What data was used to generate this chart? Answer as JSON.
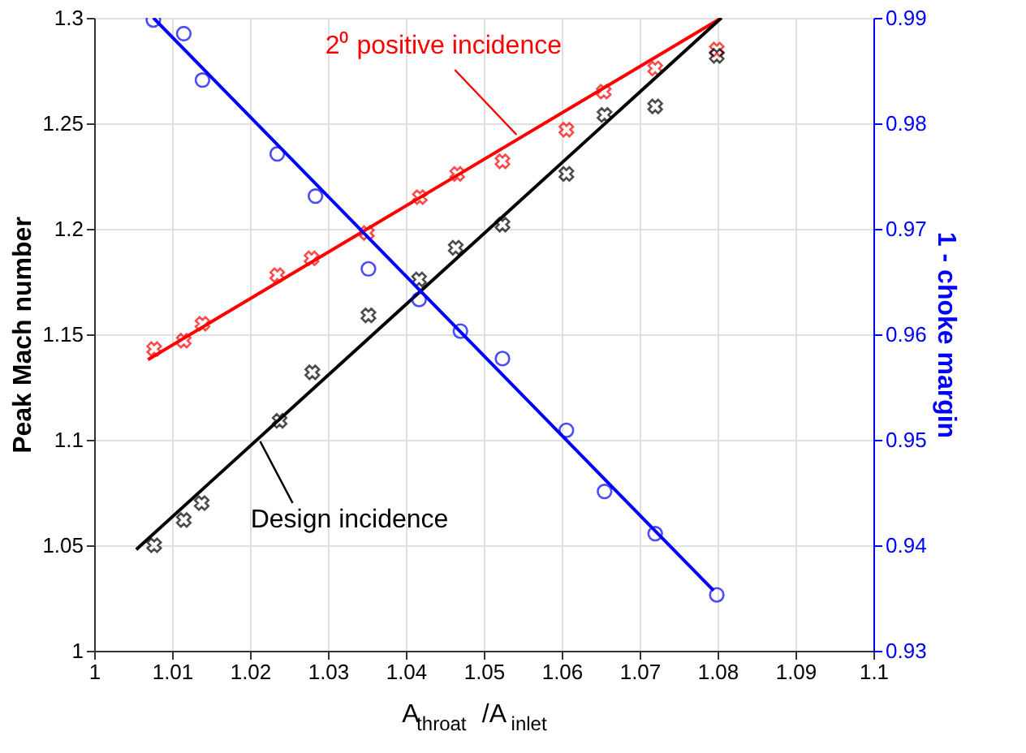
{
  "chart_data": {
    "type": "scatter",
    "xlabel": "A$_{throat}$/A$_{inlet}$",
    "ylabel": "Peak Mach number",
    "y2label": "1 - choke margin",
    "xlim": [
      1,
      1.1
    ],
    "xticks": [
      1,
      1.01,
      1.02,
      1.03,
      1.04,
      1.05,
      1.06,
      1.07,
      1.08,
      1.09,
      1.1
    ],
    "ylim": [
      1,
      1.3
    ],
    "yticks": [
      1,
      1.05,
      1.1,
      1.15,
      1.2,
      1.25,
      1.3
    ],
    "y2lim": [
      0.93,
      0.99
    ],
    "y2ticks": [
      0.93,
      0.94,
      0.95,
      0.96,
      0.97,
      0.98,
      0.99
    ],
    "grid": true,
    "series": [
      {
        "marker": "cross",
        "color": "#ff0000",
        "x": [
          1.0077,
          1.0115,
          1.0139,
          1.0235,
          1.0279,
          1.035,
          1.0418,
          1.0466,
          1.0524,
          1.0606,
          1.0654,
          1.072,
          1.0799
        ],
        "values": [
          1.143,
          1.147,
          1.155,
          1.178,
          1.186,
          1.198,
          1.215,
          1.226,
          1.232,
          1.247,
          1.265,
          1.276,
          1.285
        ]
      },
      {
        "marker": "cross",
        "color": "#000000",
        "x": [
          1.0077,
          1.0115,
          1.0138,
          1.0238,
          1.028,
          1.0352,
          1.0417,
          1.0464,
          1.0524,
          1.0606,
          1.0655,
          1.072,
          1.0799
        ],
        "values": [
          1.05,
          1.062,
          1.07,
          1.109,
          1.132,
          1.159,
          1.176,
          1.191,
          1.202,
          1.226,
          1.254,
          1.258,
          1.282
        ]
      },
      {
        "marker": "circle",
        "color": "#0000ff",
        "axis": "y2",
        "x": [
          1.0076,
          1.0115,
          1.0139,
          1.0235,
          1.0284,
          1.0352,
          1.0417,
          1.047,
          1.0524,
          1.0606,
          1.0655,
          1.072,
          1.0799
        ],
        "values": [
          0.9898,
          0.9885,
          0.9841,
          0.9771,
          0.9731,
          0.9662,
          0.9633,
          0.9603,
          0.9577,
          0.9509,
          0.9451,
          0.9411,
          0.9353
        ]
      },
      {
        "type": "line",
        "color": "#ff0000",
        "x": [
          1.0069,
          1.0805
        ],
        "values": [
          1.138,
          1.3
        ]
      },
      {
        "type": "line",
        "color": "#000000",
        "x": [
          1.0054,
          1.0805
        ],
        "values": [
          1.048,
          1.3
        ]
      },
      {
        "type": "line",
        "color": "#0000ff",
        "axis": "y2",
        "x": [
          1.0076,
          1.0795
        ],
        "values": [
          0.99,
          0.9357
        ]
      }
    ],
    "annotations": [
      {
        "text": "2⁰ positive incidence",
        "x": 1.0542,
        "y": 1.2446
      },
      {
        "text": "Design incidence",
        "x": 1.0213,
        "y": 1.0993
      }
    ]
  }
}
